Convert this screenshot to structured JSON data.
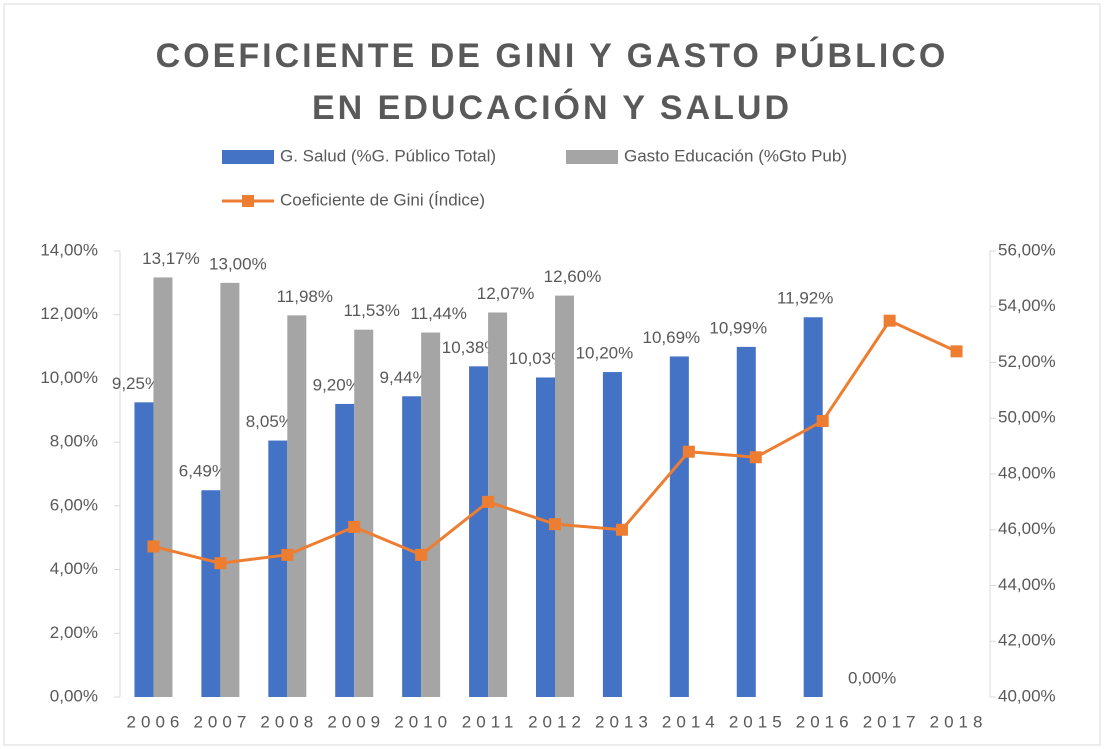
{
  "chart_data": {
    "type": "bar_line",
    "title": "COEFICIENTE DE GINI Y GASTO PÚBLICO EN EDUCACIÓN Y SALUD",
    "categories": [
      "2006",
      "2007",
      "2008",
      "2009",
      "2010",
      "2011",
      "2012",
      "2013",
      "2014",
      "2015",
      "2016",
      "2017",
      "2018"
    ],
    "series": [
      {
        "name": "G. Salud (%G. Público Total)",
        "type": "bar",
        "color": "#4472c4",
        "values": [
          9.25,
          6.49,
          8.05,
          9.2,
          9.44,
          10.38,
          10.03,
          10.2,
          10.69,
          10.99,
          11.92,
          0,
          null
        ],
        "value_labels": [
          "9,25%",
          "6,49%",
          "8,05%",
          "9,20%",
          "9,44%",
          "10,38%",
          "10,03%",
          "10,20%",
          "10,69%",
          "10,99%",
          "11,92%",
          "0,00%",
          null
        ]
      },
      {
        "name": "Gasto Educación (%Gto Pub)",
        "type": "bar",
        "color": "#a5a5a5",
        "values": [
          13.17,
          13.0,
          11.98,
          11.53,
          11.44,
          12.07,
          12.6,
          null,
          null,
          null,
          null,
          null,
          null
        ],
        "value_labels": [
          "13,17%",
          "13,00%",
          "11,98%",
          "11,53%",
          "11,44%",
          "12,07%",
          "12,60%",
          null,
          null,
          null,
          null,
          null,
          null
        ]
      },
      {
        "name": "Coeficiente de Gini (Índice)",
        "type": "line",
        "axis": "y2",
        "color": "#ed7d31",
        "values": [
          45.4,
          44.8,
          45.1,
          46.1,
          45.1,
          47.0,
          46.2,
          46.0,
          48.8,
          48.6,
          49.9,
          53.5,
          52.4
        ]
      }
    ],
    "ylim": [
      0,
      14
    ],
    "yticks": [
      {
        "value": 0,
        "label": "0,00%"
      },
      {
        "value": 2,
        "label": "2,00%"
      },
      {
        "value": 4,
        "label": "4,00%"
      },
      {
        "value": 6,
        "label": "6,00%"
      },
      {
        "value": 8,
        "label": "8,00%"
      },
      {
        "value": 10,
        "label": "10,00%"
      },
      {
        "value": 12,
        "label": "12,00%"
      },
      {
        "value": 14,
        "label": "14,00%"
      }
    ],
    "y2lim": [
      40,
      56
    ],
    "y2ticks": [
      {
        "value": 40,
        "label": "40,00%"
      },
      {
        "value": 42,
        "label": "42,00%"
      },
      {
        "value": 44,
        "label": "44,00%"
      },
      {
        "value": 46,
        "label": "46,00%"
      },
      {
        "value": 48,
        "label": "48,00%"
      },
      {
        "value": 50,
        "label": "50,00%"
      },
      {
        "value": 52,
        "label": "52,00%"
      },
      {
        "value": 54,
        "label": "54,00%"
      },
      {
        "value": 56,
        "label": "56,00%"
      }
    ],
    "legend": "top"
  }
}
